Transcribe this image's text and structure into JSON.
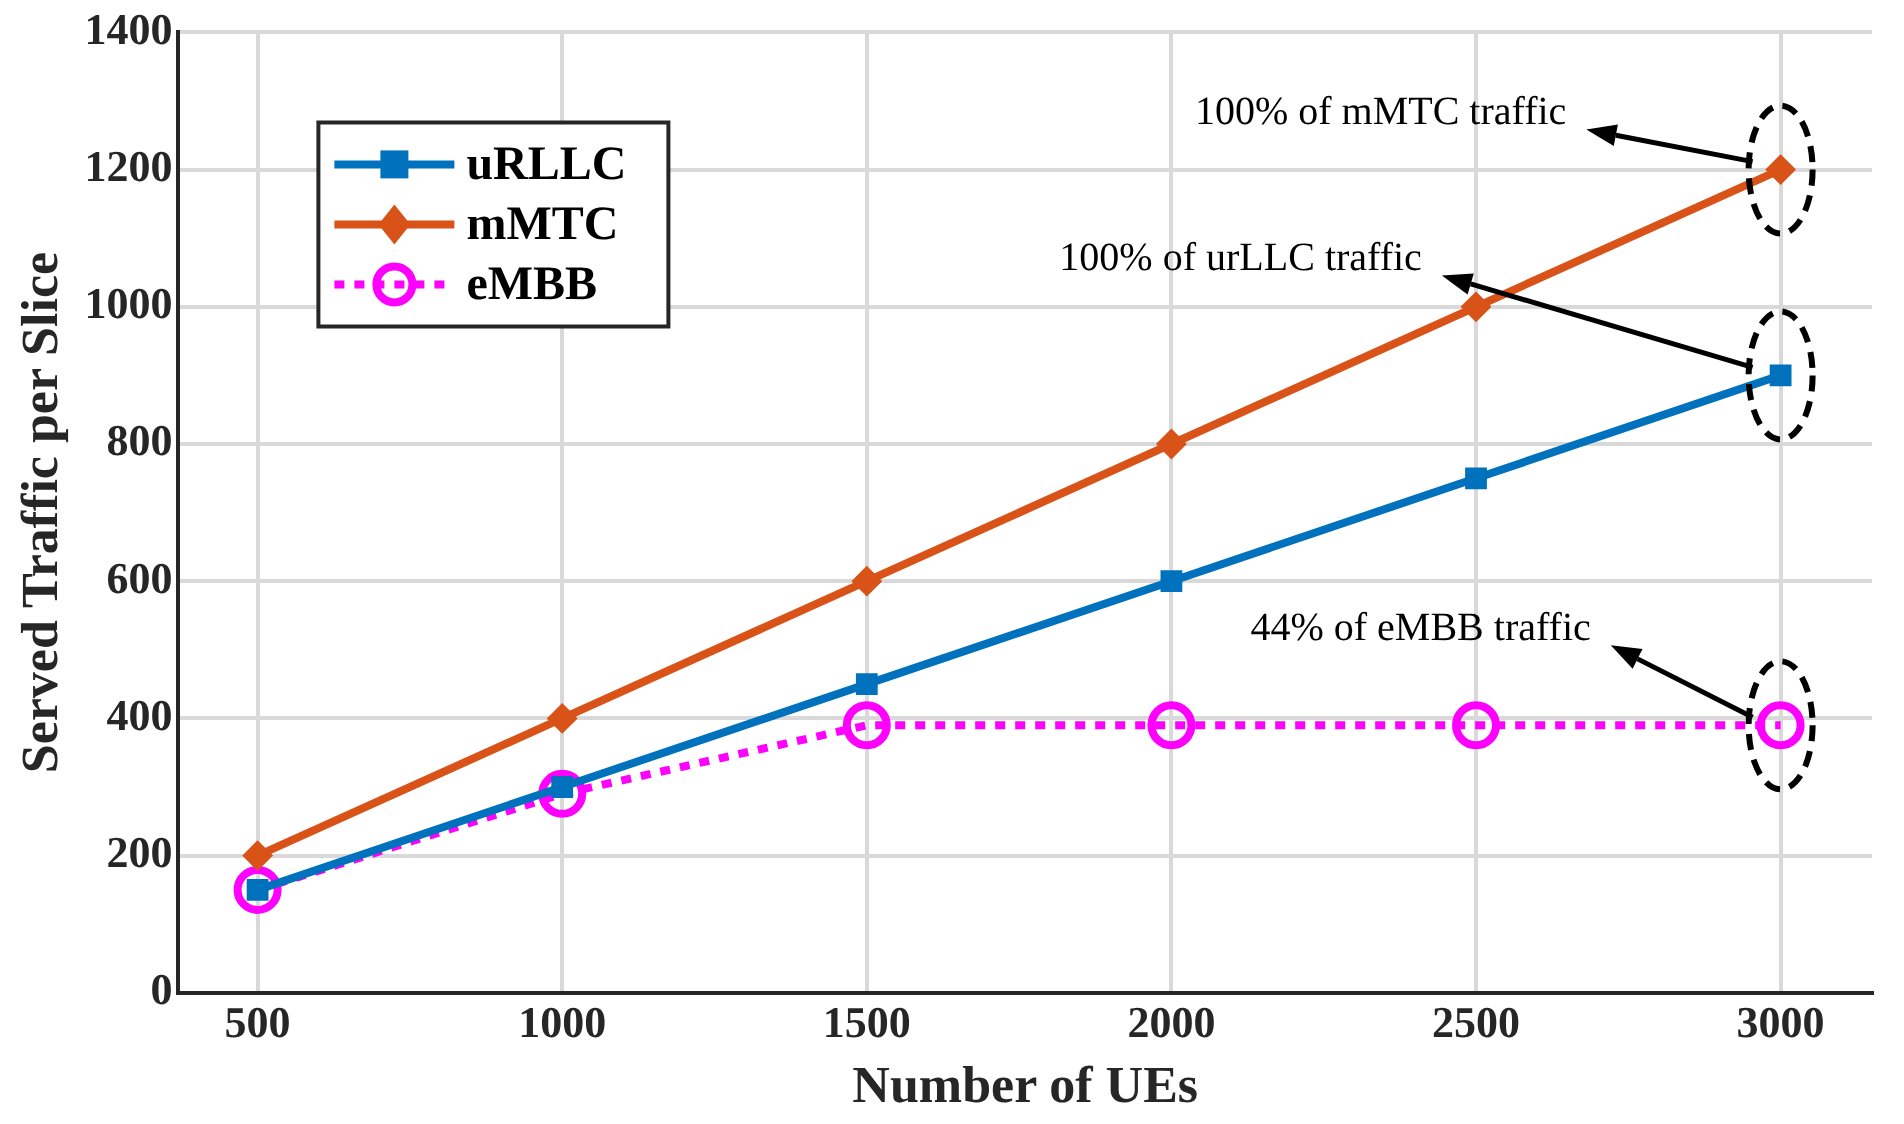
{
  "chart_data": {
    "type": "line",
    "xlabel": "Number of UEs",
    "ylabel": "Served Traffic per Slice",
    "x": [
      500,
      1000,
      1500,
      2000,
      2500,
      3000
    ],
    "series": [
      {
        "name": "uRLLC",
        "color": "#0072bd",
        "values": [
          150,
          300,
          450,
          600,
          750,
          900
        ],
        "marker": "square",
        "line_style": "solid"
      },
      {
        "name": "mMTC",
        "color": "#d95319",
        "values": [
          200,
          400,
          600,
          800,
          1000,
          1200
        ],
        "marker": "diamond",
        "line_style": "solid"
      },
      {
        "name": "eMBB",
        "color": "#ff00ff",
        "values": [
          150,
          290,
          390,
          390,
          390,
          390
        ],
        "marker": "circle",
        "line_style": "dotted"
      }
    ],
    "xlim": [
      370,
      3150
    ],
    "xticks": [
      500,
      1000,
      1500,
      2000,
      2500,
      3000
    ],
    "ylim": [
      0,
      1400
    ],
    "yticks": [
      0,
      200,
      400,
      600,
      800,
      1000,
      1200,
      1400
    ],
    "grid": true,
    "legend": "top left",
    "annotations": [
      "100% of mMTC traffic",
      "100% of urLLC traffic",
      "44% of eMBB traffic"
    ]
  }
}
